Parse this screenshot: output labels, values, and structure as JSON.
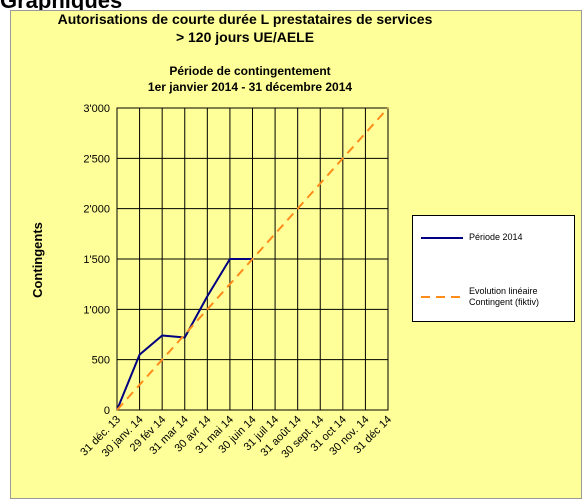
{
  "page_heading": "Graphiques",
  "chart_data": {
    "type": "line",
    "title": "Autorisations de courte durée L prestataires de services",
    "title_line2": "> 120 jours UE/AELE",
    "subtitle": "Période de contingentement",
    "subtitle_line2": "1er janvier 2014 - 31 décembre 2014",
    "y_label": "Contingents",
    "categories": [
      "31 déc. 13",
      "30 janv. 14",
      "29 fév 14",
      "31 mar 14",
      "30 avr 14",
      "31 mai 14",
      "30 juin 14",
      "31 juil 14",
      "31 août 14",
      "30 sept. 14",
      "31 oct 14",
      "30 nov. 14",
      "31 déc 14"
    ],
    "series": [
      {
        "name": "Période 2014",
        "color": "#000080",
        "dashed": false,
        "values": [
          0,
          550,
          740,
          720,
          1130,
          1500,
          1500,
          null,
          null,
          null,
          null,
          null,
          null
        ]
      },
      {
        "name": "Evolution linéaire Contingent (fiktiv)",
        "color": "#ff8c1a",
        "dashed": true,
        "values": [
          0,
          250,
          500,
          750,
          1000,
          1250,
          1500,
          1750,
          2000,
          2250,
          2500,
          2750,
          3000
        ]
      }
    ],
    "ylim": [
      0,
      3000
    ],
    "yticks": [
      0,
      500,
      {
        "value": 1000,
        "label": "1'000"
      },
      {
        "value": 1500,
        "label": "1'500"
      },
      {
        "value": 2000,
        "label": "2'000"
      },
      {
        "value": 2500,
        "label": "2'500"
      },
      {
        "value": 3000,
        "label": "3'000"
      }
    ],
    "grid": true,
    "legend": "right",
    "background": "#ffff99"
  }
}
